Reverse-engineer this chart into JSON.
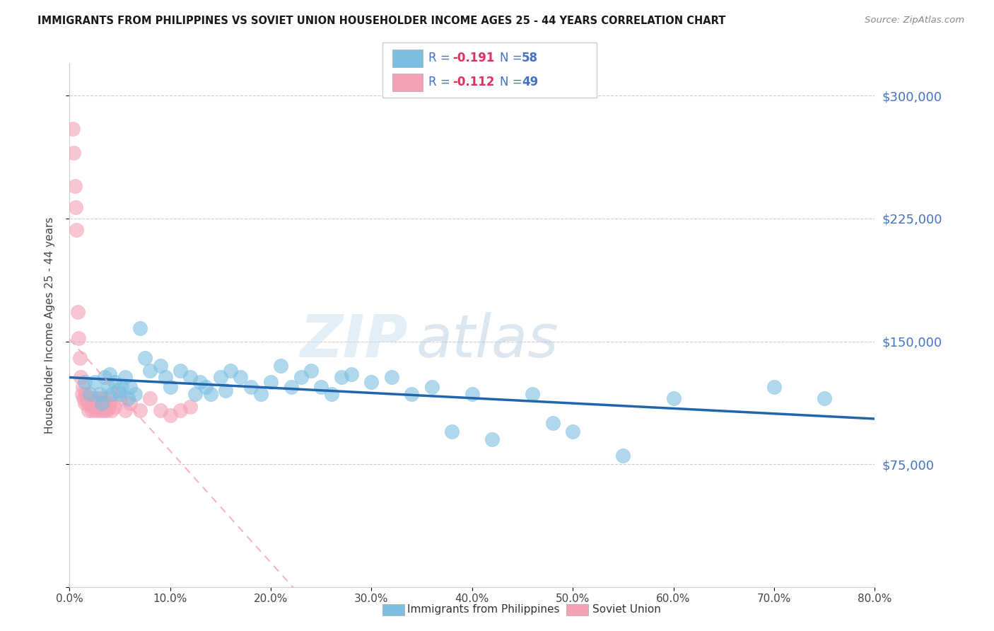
{
  "title": "IMMIGRANTS FROM PHILIPPINES VS SOVIET UNION HOUSEHOLDER INCOME AGES 25 - 44 YEARS CORRELATION CHART",
  "source": "Source: ZipAtlas.com",
  "xlabel_ticks": [
    "0.0%",
    "10.0%",
    "20.0%",
    "30.0%",
    "40.0%",
    "50.0%",
    "60.0%",
    "70.0%",
    "80.0%"
  ],
  "xlabel_vals": [
    0,
    10,
    20,
    30,
    40,
    50,
    60,
    70,
    80
  ],
  "ylabel": "Householder Income Ages 25 - 44 years",
  "ylabel_ticks": [
    0,
    75000,
    150000,
    225000,
    300000
  ],
  "ylabel_labels": [
    "",
    "$75,000",
    "$150,000",
    "$225,000",
    "$300,000"
  ],
  "xlim": [
    0,
    80
  ],
  "ylim": [
    0,
    320000
  ],
  "legend_philippines": "Immigrants from Philippines",
  "legend_soviet": "Soviet Union",
  "R_phil": "-0.191",
  "N_phil": "58",
  "R_sov": "-0.112",
  "N_sov": "49",
  "color_philippines": "#7bbfe0",
  "color_soviet": "#f4a0b5",
  "color_line_phil": "#2166ac",
  "color_line_sov": "#f4a0b5",
  "watermark_zip": "ZIP",
  "watermark_atlas": "atlas",
  "background_color": "#ffffff",
  "grid_color": "#cccccc",
  "philippines_x": [
    1.5,
    2.0,
    2.5,
    3.0,
    3.2,
    3.5,
    3.8,
    4.0,
    4.2,
    4.5,
    4.8,
    5.0,
    5.2,
    5.5,
    5.8,
    6.0,
    6.5,
    7.0,
    7.5,
    8.0,
    9.0,
    9.5,
    10.0,
    11.0,
    12.0,
    12.5,
    13.0,
    13.5,
    14.0,
    15.0,
    15.5,
    16.0,
    17.0,
    18.0,
    19.0,
    20.0,
    21.0,
    22.0,
    23.0,
    24.0,
    25.0,
    26.0,
    27.0,
    28.0,
    30.0,
    32.0,
    34.0,
    36.0,
    38.0,
    40.0,
    42.0,
    46.0,
    48.0,
    50.0,
    55.0,
    60.0,
    70.0,
    75.0
  ],
  "philippines_y": [
    125000,
    118000,
    125000,
    118000,
    112000,
    128000,
    122000,
    130000,
    118000,
    125000,
    120000,
    118000,
    122000,
    128000,
    115000,
    122000,
    118000,
    158000,
    140000,
    132000,
    135000,
    128000,
    122000,
    132000,
    128000,
    118000,
    125000,
    122000,
    118000,
    128000,
    120000,
    132000,
    128000,
    122000,
    118000,
    125000,
    135000,
    122000,
    128000,
    132000,
    122000,
    118000,
    128000,
    130000,
    125000,
    128000,
    118000,
    122000,
    95000,
    118000,
    90000,
    118000,
    100000,
    95000,
    80000,
    115000,
    122000,
    115000
  ],
  "soviet_x": [
    0.3,
    0.4,
    0.5,
    0.6,
    0.7,
    0.8,
    0.9,
    1.0,
    1.1,
    1.2,
    1.3,
    1.4,
    1.5,
    1.6,
    1.7,
    1.8,
    1.9,
    2.0,
    2.1,
    2.2,
    2.3,
    2.4,
    2.5,
    2.6,
    2.7,
    2.8,
    2.9,
    3.0,
    3.1,
    3.2,
    3.3,
    3.4,
    3.5,
    3.6,
    3.7,
    3.8,
    3.9,
    4.0,
    4.2,
    4.5,
    5.0,
    5.5,
    6.0,
    7.0,
    8.0,
    9.0,
    10.0,
    11.0,
    12.0
  ],
  "soviet_y": [
    280000,
    265000,
    245000,
    232000,
    218000,
    168000,
    152000,
    140000,
    128000,
    118000,
    122000,
    115000,
    112000,
    118000,
    115000,
    112000,
    108000,
    115000,
    112000,
    108000,
    115000,
    110000,
    112000,
    108000,
    115000,
    110000,
    108000,
    112000,
    115000,
    108000,
    112000,
    115000,
    108000,
    112000,
    108000,
    115000,
    110000,
    112000,
    108000,
    110000,
    115000,
    108000,
    112000,
    108000,
    115000,
    108000,
    105000,
    108000,
    110000
  ]
}
